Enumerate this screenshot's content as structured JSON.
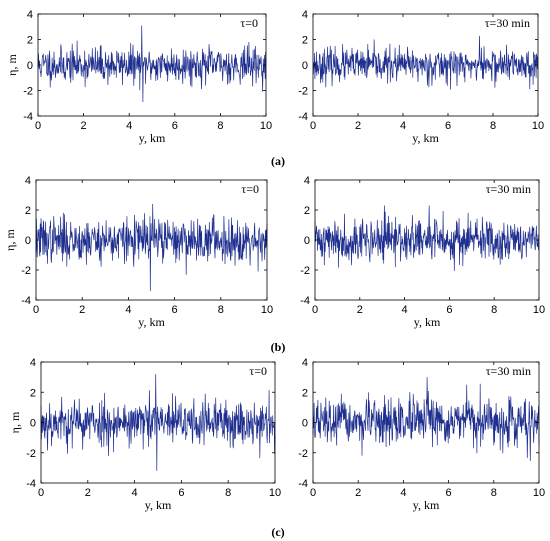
{
  "figure": {
    "row_labels": [
      "(a)",
      "(b)",
      "(c)"
    ]
  },
  "chart_data": [
    {
      "type": "line",
      "row": "(a)",
      "panel": "left",
      "annotation": "τ=0",
      "xlabel": "y, km",
      "ylabel": "η, m",
      "xlim": [
        0,
        10
      ],
      "ylim": [
        -4,
        4
      ],
      "xticks": [
        0,
        2,
        4,
        6,
        8,
        10
      ],
      "yticks": [
        -4,
        -2,
        0,
        2,
        4
      ],
      "series": [
        {
          "color": "#1f2f8f",
          "amplitude_std": 0.7,
          "spikes": [
            {
              "x": 4.55,
              "y": 3.1
            },
            {
              "x": 4.6,
              "y": -2.9
            }
          ],
          "seed": 11
        }
      ]
    },
    {
      "type": "line",
      "row": "(a)",
      "panel": "right",
      "annotation": "τ=30 min",
      "xlabel": "y, km",
      "ylabel": "",
      "xlim": [
        0,
        10
      ],
      "ylim": [
        -4,
        4
      ],
      "xticks": [
        0,
        2,
        4,
        6,
        8,
        10
      ],
      "yticks": [
        -4,
        -2,
        0,
        2,
        4
      ],
      "series": [
        {
          "color": "#1f2f8f",
          "amplitude_std": 0.65,
          "spikes": [
            {
              "x": 7.4,
              "y": 2.3
            }
          ],
          "seed": 23
        }
      ]
    },
    {
      "type": "line",
      "row": "(b)",
      "panel": "left",
      "annotation": "τ=0",
      "xlabel": "y, km",
      "ylabel": "η, m",
      "xlim": [
        0,
        10
      ],
      "ylim": [
        -4,
        4
      ],
      "xticks": [
        0,
        2,
        4,
        6,
        8,
        10
      ],
      "yticks": [
        -4,
        -2,
        0,
        2,
        4
      ],
      "series": [
        {
          "color": "#1f2f8f",
          "amplitude_std": 0.75,
          "spikes": [
            {
              "x": 4.95,
              "y": -3.4
            },
            {
              "x": 5.05,
              "y": 2.4
            }
          ],
          "seed": 37
        }
      ]
    },
    {
      "type": "line",
      "row": "(b)",
      "panel": "right",
      "annotation": "τ=30 min",
      "xlabel": "y, km",
      "ylabel": "",
      "xlim": [
        0,
        10
      ],
      "ylim": [
        -4,
        4
      ],
      "xticks": [
        0,
        2,
        4,
        6,
        8,
        10
      ],
      "yticks": [
        -4,
        -2,
        0,
        2,
        4
      ],
      "series": [
        {
          "color": "#1f2f8f",
          "amplitude_std": 0.72,
          "spikes": [
            {
              "x": 3.1,
              "y": 2.3
            },
            {
              "x": 5.1,
              "y": 2.3
            }
          ],
          "seed": 41
        }
      ]
    },
    {
      "type": "line",
      "row": "(c)",
      "panel": "left",
      "annotation": "τ=0",
      "xlabel": "y, km",
      "ylabel": "η, m",
      "xlim": [
        0,
        10
      ],
      "ylim": [
        -4,
        4
      ],
      "xticks": [
        0,
        2,
        4,
        6,
        8,
        10
      ],
      "yticks": [
        -4,
        -2,
        0,
        2,
        4
      ],
      "series": [
        {
          "color": "#1f2f8f",
          "amplitude_std": 0.78,
          "spikes": [
            {
              "x": 4.9,
              "y": 3.2
            },
            {
              "x": 4.95,
              "y": -3.2
            }
          ],
          "seed": 53
        }
      ]
    },
    {
      "type": "line",
      "row": "(c)",
      "panel": "right",
      "annotation": "τ=30 min",
      "xlabel": "y, km",
      "ylabel": "",
      "xlim": [
        0,
        10
      ],
      "ylim": [
        -4,
        4
      ],
      "xticks": [
        0,
        2,
        4,
        6,
        8,
        10
      ],
      "yticks": [
        -4,
        -2,
        0,
        2,
        4
      ],
      "series": [
        {
          "color": "#1f2f8f",
          "amplitude_std": 0.75,
          "spikes": [
            {
              "x": 5.05,
              "y": 3.0
            },
            {
              "x": 6.8,
              "y": 2.5
            }
          ],
          "seed": 67
        }
      ]
    }
  ]
}
